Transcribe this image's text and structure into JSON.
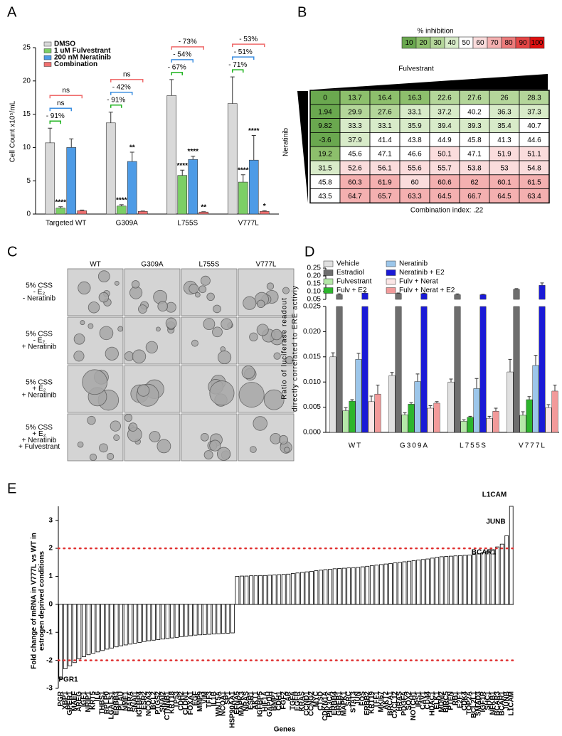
{
  "panel_labels": [
    "A",
    "B",
    "C",
    "D",
    "E"
  ],
  "chart_data": [
    {
      "type": "bar",
      "y_label": "Cell Count x10⁵/mL",
      "categories": [
        "Targeted WT",
        "G309A",
        "L755S",
        "V777L"
      ],
      "ylim": [
        0,
        25
      ],
      "yticks": [
        0,
        5,
        10,
        15,
        20,
        25
      ],
      "series": [
        {
          "name": "DMSO",
          "color": "#d9d9d9",
          "values": [
            10.7,
            13.7,
            17.8,
            16.6
          ],
          "errors": [
            2.2,
            1.6,
            2.4,
            4.0
          ]
        },
        {
          "name": "1 uM Fulvestrant",
          "color": "#7ccf66",
          "values": [
            0.9,
            1.2,
            5.8,
            4.8
          ],
          "errors": [
            0.2,
            0.2,
            0.8,
            1.1
          ],
          "stars": [
            "****",
            "****",
            "****",
            "****"
          ],
          "comparison_labels": [
            "- 91%",
            "- 91%",
            "- 67%",
            "- 71%"
          ],
          "label_color": "#1fb31f"
        },
        {
          "name": "200 nM Neratinib",
          "color": "#4d9be6",
          "values": [
            10.0,
            7.9,
            8.2,
            8.1
          ],
          "errors": [
            1.3,
            1.4,
            0.5,
            3.7
          ],
          "stars": [
            null,
            "**",
            "****",
            "****"
          ],
          "comparison_labels": [
            "ns",
            "- 42%",
            "- 54%",
            "- 51%"
          ],
          "label_color": "#3c8fe0"
        },
        {
          "name": "Combination",
          "color": "#f07070",
          "values": [
            0.5,
            0.4,
            0.3,
            0.4
          ],
          "errors": [
            0.1,
            0.05,
            0.05,
            0.1
          ],
          "stars": [
            null,
            null,
            "**",
            "*"
          ],
          "comparison_labels": [
            "ns",
            "ns",
            "- 73%",
            "- 53%"
          ],
          "label_color": "#ef6b6b"
        }
      ]
    },
    {
      "type": "heatmap",
      "x_label": "Fulvestrant",
      "y_label": "Neratinib",
      "footnote": "Combination index: .22",
      "colorbar": {
        "title": "% inhibition",
        "ticks": [
          10,
          20,
          30,
          40,
          50,
          60,
          70,
          80,
          90,
          100
        ],
        "colors": [
          "#6aa84f",
          "#8dbf6c",
          "#b4d69a",
          "#d8ebc9",
          "#ffffff",
          "#fadcdc",
          "#f4b0b0",
          "#ec7b7b",
          "#e54646",
          "#e01010"
        ]
      },
      "values": [
        [
          0,
          13.7,
          16.4,
          16.3,
          22.6,
          27.6,
          26,
          28.3
        ],
        [
          1.94,
          29.9,
          27.6,
          33.1,
          37.2,
          40.2,
          36.3,
          37.3
        ],
        [
          9.82,
          33.3,
          33.1,
          35.9,
          39.4,
          39.3,
          35.4,
          40.7
        ],
        [
          -3.6,
          37.9,
          41.4,
          43.8,
          44.9,
          45.8,
          41.3,
          44.6
        ],
        [
          19.2,
          45.6,
          47.1,
          46.6,
          50.1,
          47.1,
          51.9,
          51.1
        ],
        [
          31.5,
          52.6,
          56.1,
          55.6,
          55.7,
          53.8,
          53,
          54.8
        ],
        [
          45.8,
          60.3,
          61.9,
          60,
          60.6,
          62,
          60.1,
          61.5
        ],
        [
          43.5,
          64.7,
          65.7,
          63.3,
          64.5,
          66.7,
          64.5,
          63.4
        ]
      ]
    },
    {
      "type": "broken-bar",
      "y_label": [
        "Ratio of luciferase readout",
        "directly correlated to ERE activiy"
      ],
      "categories": [
        "WT",
        "G309A",
        "L755S",
        "V777L"
      ],
      "ylim": [
        0,
        0.025
      ],
      "yticks": [
        {
          "value": 0,
          "label": "0.000"
        },
        {
          "value": 0.005,
          "label": "0.005"
        },
        {
          "value": 0.01,
          "label": "0.010"
        },
        {
          "value": 0.015,
          "label": "0.015"
        },
        {
          "value": 0.02,
          "label": "0.020"
        },
        {
          "value": 0.025,
          "label": "0.025"
        }
      ],
      "ylim_upper": [
        0.05,
        0.25
      ],
      "yticks_upper": [
        0.05,
        {
          "value": 0.1,
          "label": "0.10"
        },
        0.15,
        {
          "value": 0.2,
          "label": "0.20"
        },
        0.25
      ],
      "series": [
        {
          "name": "Vehicle",
          "color": "#e0e0e0",
          "values": [
            0.015,
            0.0113,
            0.01,
            0.012
          ],
          "errors": [
            0.0008,
            0.0006,
            0.0006,
            0.0025
          ]
        },
        {
          "name": "Estradiol",
          "color": "#6e6e6e",
          "values": [
            0.08,
            0.088,
            0.08,
            0.115
          ],
          "errors": [
            0.006,
            0.003,
            0.005,
            0.004
          ]
        },
        {
          "name": "Fulvestrant",
          "color": "#b5e8a8",
          "values": [
            0.0043,
            0.0035,
            0.0022,
            0.0034
          ],
          "errors": [
            0.0006,
            0.0004,
            0.0003,
            0.0007
          ]
        },
        {
          "name": "Fulv + E2",
          "color": "#2db52d",
          "values": [
            0.0062,
            0.0056,
            0.003,
            0.0065
          ],
          "errors": [
            0.0003,
            0.0003,
            0.0002,
            0.0006
          ]
        },
        {
          "name": "Neratinib",
          "color": "#9cc6ea",
          "values": [
            0.0145,
            0.0101,
            0.0087,
            0.0133
          ],
          "errors": [
            0.0012,
            0.0015,
            0.002,
            0.002
          ]
        },
        {
          "name": "Neratinib + E2",
          "color": "#1a1ad6",
          "values": [
            0.09,
            0.087,
            0.08,
            0.14
          ],
          "errors": [
            0.01,
            0.003,
            0.003,
            0.015
          ]
        },
        {
          "name": "Fulv + Nerat",
          "color": "#fbe6e6",
          "values": [
            0.0061,
            0.0048,
            0.0028,
            0.0049
          ],
          "errors": [
            0.0011,
            0.0005,
            0.0004,
            0.0006
          ]
        },
        {
          "name": "Fulv + Nerat + E2",
          "color": "#f29a9a",
          "values": [
            0.0076,
            0.0058,
            0.0042,
            0.0082
          ],
          "errors": [
            0.0018,
            0.0003,
            0.0006,
            0.0012
          ]
        }
      ]
    },
    {
      "type": "bar",
      "y_label": [
        "Fold change of mRNA in V777L vs WT in",
        "estrogen deprived conditions"
      ],
      "x_label": "Genes",
      "color": "#ffffff",
      "ylim": [
        -3,
        3.5
      ],
      "yticks": [
        -3,
        -2,
        -1,
        0,
        1,
        2,
        3
      ],
      "reference_lines": [
        2,
        -2
      ],
      "reference_color": "#e03030",
      "annotations": [
        "PGR1",
        "BCAR1",
        "JUNB",
        "L1CAM"
      ],
      "categories": [
        "PGR",
        "XBP1",
        "GPER1",
        "MAEF",
        "AREG",
        "IGF1",
        "NRIP1",
        "KRT5",
        "IL6",
        "THBS1",
        "RPLP0",
        "LGALS1",
        "ERBB3",
        "PLAU",
        "NME1",
        "RARA",
        "SNAI1",
        "IGFBP4",
        "ESR2",
        "NCOA3",
        "BCL2",
        "PTGS2",
        "SNAI2",
        "CTNNB1",
        "KRT18",
        "TP53",
        "CDH2",
        "CLDN1",
        "FOXA1",
        "EGF",
        "MMP9",
        "VIM",
        "TFF3",
        "IL1B",
        "WNT5A",
        "NCOA1",
        "SP1",
        "HSP90AA1",
        "EFNA5",
        "MAPK3",
        "NRAS",
        "ESR1",
        "AKT1",
        "IGFBP5",
        "HIF1A",
        "GAPDH",
        "BMP7",
        "CDH1",
        "FGF2",
        "AR",
        "TGFA",
        "EGFR",
        "KRAS",
        "CCND1",
        "CCNG2",
        "MYC",
        "CTSD",
        "CDKN1A",
        "PIK3CA",
        "ERBB4",
        "GREB1",
        "MAPK1",
        "SRC",
        "STAT3",
        "JUN",
        "FOS",
        "ERBB2",
        "KRT19",
        "TFF1",
        "MKI67",
        "AKT2",
        "BRCA1",
        "CXCL12",
        "HRAS",
        "PDGFA",
        "SOX2",
        "NOTCH1",
        "IRS1",
        "CAV1",
        "CD44",
        "HDAC1",
        "ELK1",
        "MDM2",
        "BIRC5",
        "PTEN",
        "RB1",
        "E2F1",
        "CDK4",
        "TOP2A",
        "BCL2L1",
        "SMAD3",
        "IGF1R",
        "SHC1",
        "NFKB1",
        "BCAR3",
        "BCAR1",
        "JUNB",
        "L1CAM"
      ],
      "values": [
        -2.65,
        -2.3,
        -2.2,
        -2.08,
        -1.95,
        -1.87,
        -1.8,
        -1.75,
        -1.7,
        -1.65,
        -1.6,
        -1.56,
        -1.52,
        -1.48,
        -1.45,
        -1.42,
        -1.39,
        -1.36,
        -1.33,
        -1.3,
        -1.28,
        -1.26,
        -1.24,
        -1.22,
        -1.2,
        -1.18,
        -1.16,
        -1.14,
        -1.12,
        -1.1,
        -1.09,
        -1.08,
        -1.07,
        -1.06,
        -1.05,
        -1.04,
        -1.03,
        -1.02,
        1.0,
        1.01,
        1.01,
        1.02,
        1.02,
        1.03,
        1.03,
        1.04,
        1.05,
        1.06,
        1.07,
        1.08,
        1.1,
        1.12,
        1.14,
        1.16,
        1.18,
        1.2,
        1.22,
        1.24,
        1.25,
        1.27,
        1.28,
        1.29,
        1.3,
        1.31,
        1.32,
        1.34,
        1.36,
        1.38,
        1.4,
        1.42,
        1.44,
        1.46,
        1.48,
        1.5,
        1.52,
        1.54,
        1.56,
        1.58,
        1.6,
        1.62,
        1.65,
        1.68,
        1.7,
        1.71,
        1.72,
        1.73,
        1.74,
        1.75,
        1.76,
        1.78,
        1.8,
        1.85,
        1.9,
        1.95,
        2.05,
        2.15,
        2.45,
        3.5
      ]
    }
  ],
  "image_panel": {
    "columns": [
      "WT",
      "G309A",
      "L755S",
      "V777L"
    ],
    "row_labels": [
      [
        "5% CSS",
        "- E₂",
        "- Neratinib"
      ],
      [
        "5% CSS",
        "- E₂",
        "+ Neratinib"
      ],
      [
        "5% CSS",
        "+ E₂",
        "+ Neratinib"
      ],
      [
        "5% CSS",
        "+ E₂",
        "+ Neratinib",
        "+ Fulvestrant"
      ]
    ]
  }
}
